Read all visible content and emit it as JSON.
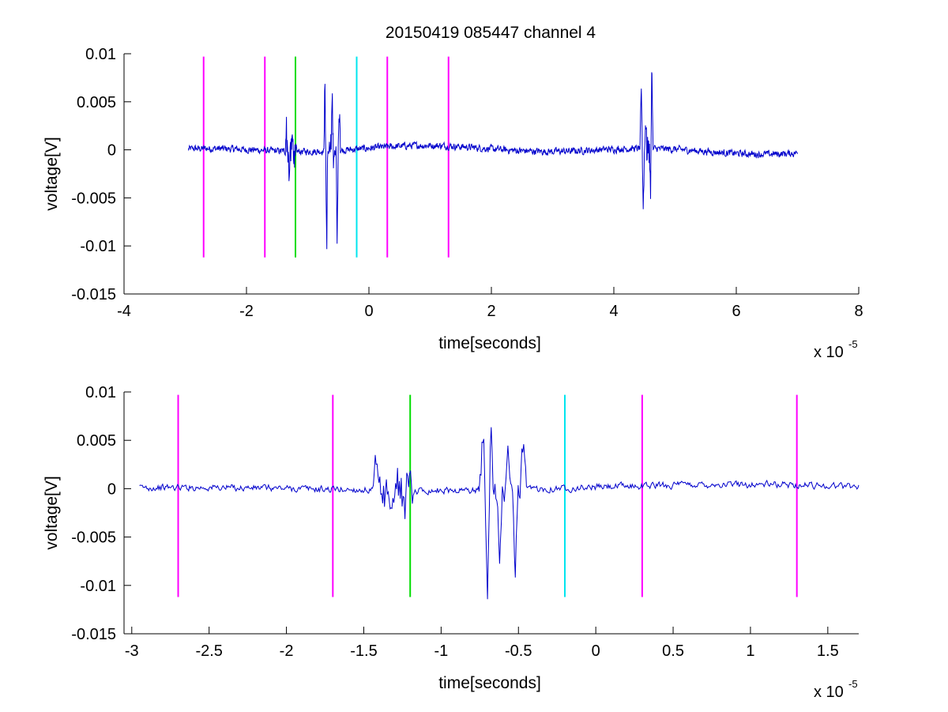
{
  "figure": {
    "title": "20150419 085447 channel 4",
    "colors": {
      "signal": "#0000cc",
      "magenta_marker": "#ff00ff",
      "green_marker": "#00dd00",
      "cyan_marker": "#00e5ee",
      "axes": "#000000",
      "background": "#ffffff"
    }
  },
  "chart_data": [
    {
      "type": "line",
      "title": "20150419 085447 channel 4",
      "xlabel": "time[seconds]",
      "ylabel": "voltage[V]",
      "x_multiplier_label": "x 10",
      "x_multiplier_exponent": "-5",
      "xlim": [
        -4,
        8
      ],
      "ylim": [
        -0.015,
        0.01
      ],
      "grid": false,
      "x_ticks": [
        -4,
        -2,
        0,
        2,
        4,
        6,
        8
      ],
      "x_tick_labels": [
        "-4",
        "-2",
        "0",
        "2",
        "4",
        "6",
        "8"
      ],
      "y_ticks": [
        -0.015,
        -0.01,
        -0.005,
        0,
        0.005,
        0.01
      ],
      "y_tick_labels": [
        "-0.015",
        "-0.01",
        "-0.005",
        "0",
        "0.005",
        "0.01"
      ],
      "signal_x_range": [
        -2.95,
        7.0
      ],
      "signal_bursts": [
        {
          "x": [
            -1.35,
            -1.3,
            -1.25,
            -1.2
          ],
          "y": [
            0.0028,
            -0.0028,
            0.0012,
            -0.001
          ]
        },
        {
          "x": [
            -0.72,
            -0.69,
            -0.6,
            -0.52,
            -0.48
          ],
          "y": [
            0.0065,
            -0.0102,
            0.006,
            -0.009,
            0.0052
          ]
        },
        {
          "x": [
            4.45,
            4.48,
            4.52,
            4.6,
            4.62
          ],
          "y": [
            0.007,
            -0.0068,
            0.003,
            -0.006,
            0.009
          ]
        }
      ],
      "markers": [
        {
          "x": -2.7,
          "color": "magenta"
        },
        {
          "x": -1.7,
          "color": "magenta"
        },
        {
          "x": -1.2,
          "color": "green"
        },
        {
          "x": -0.2,
          "color": "cyan"
        },
        {
          "x": 0.3,
          "color": "magenta"
        },
        {
          "x": 1.3,
          "color": "magenta"
        }
      ],
      "marker_y_range": [
        -0.0112,
        0.0097
      ]
    },
    {
      "type": "line",
      "xlabel": "time[seconds]",
      "ylabel": "voltage[V]",
      "x_multiplier_label": "x 10",
      "x_multiplier_exponent": "-5",
      "xlim": [
        -3.05,
        1.7
      ],
      "ylim": [
        -0.015,
        0.01
      ],
      "grid": false,
      "x_ticks": [
        -3,
        -2.5,
        -2,
        -1.5,
        -1,
        -0.5,
        0,
        0.5,
        1,
        1.5
      ],
      "x_tick_labels": [
        "-3",
        "-2.5",
        "-2",
        "-1.5",
        "-1",
        "-0.5",
        "0",
        "0.5",
        "1",
        "1.5"
      ],
      "y_ticks": [
        -0.015,
        -0.01,
        -0.005,
        0,
        0.005,
        0.01
      ],
      "y_tick_labels": [
        "-0.015",
        "-0.01",
        "-0.005",
        "0",
        "0.005",
        "0.01"
      ],
      "signal_x_range": [
        -2.95,
        1.7
      ],
      "signal_bursts": [
        {
          "x": [
            -1.42,
            -1.38,
            -1.32,
            -1.28,
            -1.24,
            -1.2
          ],
          "y": [
            0.0028,
            -0.0018,
            -0.0028,
            0.001,
            -0.0022,
            0.0008
          ]
        },
        {
          "x": [
            -0.73,
            -0.7,
            -0.68,
            -0.62,
            -0.57,
            -0.52,
            -0.47
          ],
          "y": [
            0.0063,
            -0.0102,
            0.0063,
            -0.0075,
            0.004,
            -0.009,
            0.0052
          ]
        }
      ],
      "markers": [
        {
          "x": -2.7,
          "color": "magenta"
        },
        {
          "x": -1.7,
          "color": "magenta"
        },
        {
          "x": -1.2,
          "color": "green"
        },
        {
          "x": -0.2,
          "color": "cyan"
        },
        {
          "x": 0.3,
          "color": "magenta"
        },
        {
          "x": 1.3,
          "color": "magenta"
        }
      ],
      "marker_y_range": [
        -0.0112,
        0.0097
      ]
    }
  ]
}
